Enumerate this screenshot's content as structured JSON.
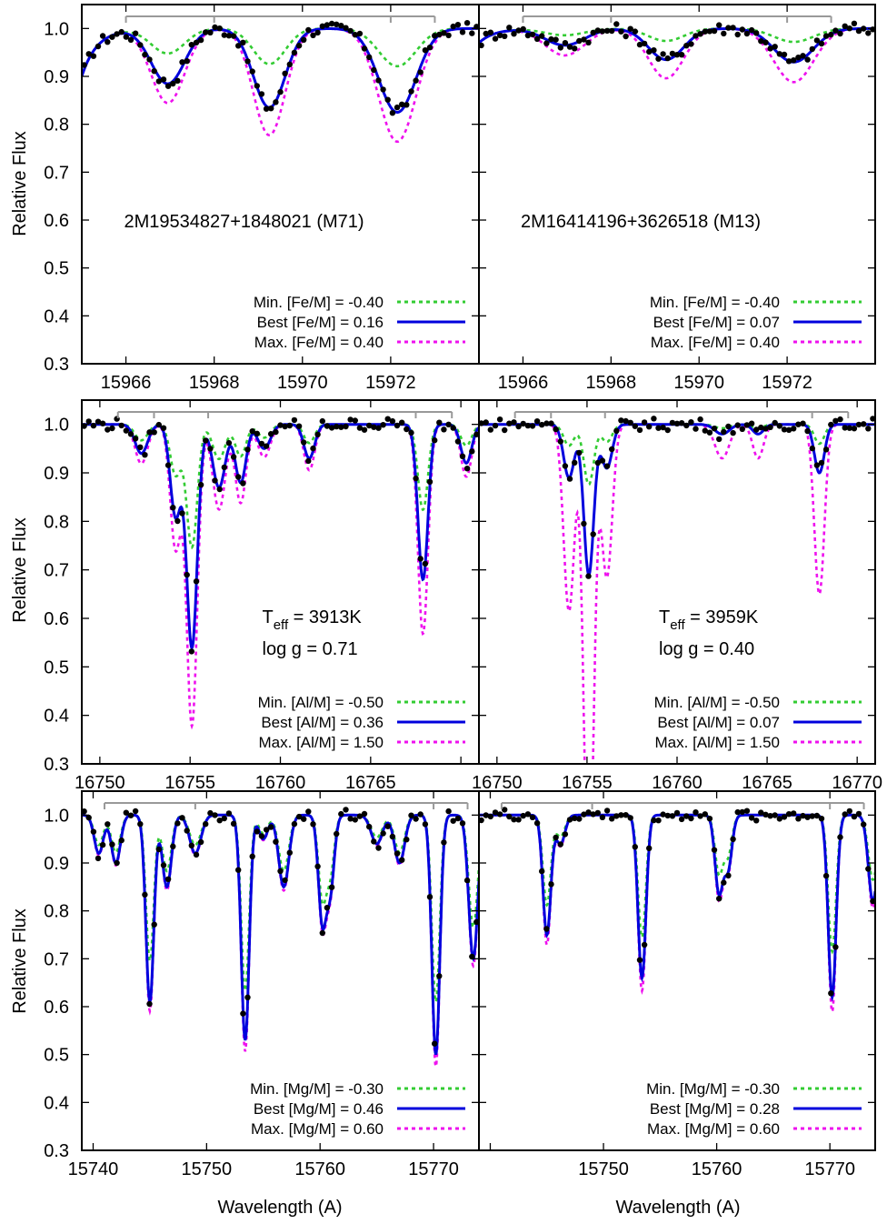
{
  "figure": {
    "y_axis_label": "Relative Flux",
    "x_axis_label": "Wavelength (A)"
  },
  "colors": {
    "min_model": "#33cc33",
    "best_model": "#0000dd",
    "max_model": "#ee11ee",
    "observed": "#000000",
    "band": "#999999"
  },
  "chart_data": [
    {
      "type": "line",
      "row": 0,
      "col": 0,
      "xlim": [
        15965.0,
        15974.0
      ],
      "ylim": [
        0.3,
        1.05
      ],
      "xticks": [
        15966,
        15968,
        15970,
        15972
      ],
      "xtick_labels": [
        "15966",
        "15968",
        "15970",
        "15972"
      ],
      "yticks": [
        0.3,
        0.4,
        0.5,
        0.6,
        0.7,
        0.8,
        0.9,
        1.0
      ],
      "ytick_labels": [
        "0.3",
        "0.4",
        "0.5",
        "0.6",
        "0.7",
        "0.8",
        "0.9",
        "1.0"
      ],
      "annotation": {
        "line1": "2M19534827+1848021 (M71)",
        "line2": ""
      },
      "band": {
        "x": [
          15966.0,
          15973.0
        ],
        "marks": [
          15968.0,
          15972.0
        ]
      },
      "lines": [
        {
          "center": 15966.95,
          "width": 0.38,
          "depth_best": 0.115
        },
        {
          "center": 15969.25,
          "width": 0.36,
          "depth_best": 0.165
        },
        {
          "center": 15972.15,
          "width": 0.42,
          "depth_best": 0.175
        }
      ],
      "scales": {
        "min": 0.45,
        "max": 1.35
      },
      "left_drop": 0.1,
      "series": [
        {
          "name": "Min. [Fe/M] = -0.40",
          "key": "min",
          "label": "Min. [Fe/M] = -0.40"
        },
        {
          "name": "Best [Fe/M] = 0.16",
          "key": "best",
          "label": "Best [Fe/M] = 0.16"
        },
        {
          "name": "Max. [Fe/M] = 0.40",
          "key": "max",
          "label": "Max. [Fe/M] = 0.40"
        }
      ]
    },
    {
      "type": "line",
      "row": 0,
      "col": 1,
      "xlim": [
        15965.0,
        15974.0
      ],
      "ylim": [
        0.3,
        1.05
      ],
      "xticks": [
        15966,
        15968,
        15970,
        15972
      ],
      "xtick_labels": [
        "15966",
        "15968",
        "15970",
        "15972"
      ],
      "yticks": [
        0.3,
        0.4,
        0.5,
        0.6,
        0.7,
        0.8,
        0.9,
        1.0
      ],
      "ytick_labels": [
        "",
        "",
        "",
        "",
        "",
        "",
        "",
        ""
      ],
      "annotation": {
        "line1": "2M16414196+3626518 (M13)",
        "line2": ""
      },
      "band": {
        "x": [
          15966.0,
          15973.0
        ],
        "marks": [
          15968.0,
          15972.0
        ]
      },
      "lines": [
        {
          "center": 15966.95,
          "width": 0.45,
          "depth_best": 0.035
        },
        {
          "center": 15969.25,
          "width": 0.4,
          "depth_best": 0.065
        },
        {
          "center": 15972.15,
          "width": 0.45,
          "depth_best": 0.07
        }
      ],
      "scales": {
        "min": 0.4,
        "max": 1.6
      },
      "left_drop": 0.03,
      "series": [
        {
          "name": "Min. [Fe/M] = -0.40",
          "key": "min",
          "label": "Min. [Fe/M] = -0.40"
        },
        {
          "name": "Best [Fe/M] = 0.07",
          "key": "best",
          "label": "Best [Fe/M] = 0.07"
        },
        {
          "name": "Max. [Fe/M] = 0.40",
          "key": "max",
          "label": "Max. [Fe/M] = 0.40"
        }
      ]
    },
    {
      "type": "line",
      "row": 1,
      "col": 0,
      "xlim": [
        16749.0,
        16771.0
      ],
      "ylim": [
        0.3,
        1.05
      ],
      "xticks": [
        16750,
        16755,
        16760,
        16765,
        16770
      ],
      "xtick_labels": [
        "16750",
        "16755",
        "16760",
        "16765",
        ""
      ],
      "yticks": [
        0.3,
        0.4,
        0.5,
        0.6,
        0.7,
        0.8,
        0.9,
        1.0
      ],
      "ytick_labels": [
        "0.3",
        "0.4",
        "0.5",
        "0.6",
        "0.7",
        "0.8",
        "0.9",
        "1.0"
      ],
      "annotation": {
        "line1": "T",
        "sub": "eff",
        "line1b": " = 3913K",
        "line2": "log g = 0.71"
      },
      "band": {
        "x": [
          16751.0,
          16769.5
        ],
        "marks": [
          16753.0,
          16756.0,
          16767.5
        ]
      },
      "lines": [
        {
          "center": 16752.3,
          "width": 0.35,
          "depth_best": 0.06
        },
        {
          "center": 16754.2,
          "width": 0.3,
          "depth_best": 0.19
        },
        {
          "center": 16755.1,
          "width": 0.3,
          "depth_best": 0.46
        },
        {
          "center": 16756.6,
          "width": 0.35,
          "depth_best": 0.13
        },
        {
          "center": 16757.8,
          "width": 0.3,
          "depth_best": 0.12
        },
        {
          "center": 16759.1,
          "width": 0.35,
          "depth_best": 0.05
        },
        {
          "center": 16761.6,
          "width": 0.3,
          "depth_best": 0.07
        },
        {
          "center": 16767.9,
          "width": 0.28,
          "depth_best": 0.32
        },
        {
          "center": 16770.3,
          "width": 0.3,
          "depth_best": 0.08
        }
      ],
      "scales": {
        "min": 0.55,
        "max": 1.35
      },
      "left_drop": 0.0,
      "series": [
        {
          "name": "Min. [Al/M] = -0.50",
          "key": "min",
          "label": "Min. [Al/M] = -0.50"
        },
        {
          "name": "Best [Al/M] = 0.36",
          "key": "best",
          "label": "Best [Al/M] = 0.36"
        },
        {
          "name": "Max. [Al/M] = 1.50",
          "key": "max",
          "label": "Max. [Al/M] = 1.50"
        }
      ]
    },
    {
      "type": "line",
      "row": 1,
      "col": 1,
      "xlim": [
        16749.0,
        16771.0
      ],
      "ylim": [
        0.3,
        1.05
      ],
      "xticks": [
        16750,
        16755,
        16760,
        16765,
        16770
      ],
      "xtick_labels": [
        "16750",
        "16755",
        "16760",
        "16765",
        "16770"
      ],
      "yticks": [
        0.3,
        0.4,
        0.5,
        0.6,
        0.7,
        0.8,
        0.9,
        1.0
      ],
      "ytick_labels": [
        "",
        "",
        "",
        "",
        "",
        "",
        "",
        ""
      ],
      "annotation": {
        "line1": "T",
        "sub": "eff",
        "line1b": " = 3959K",
        "line2": "log g = 0.40"
      },
      "band": {
        "x": [
          16751.0,
          16769.5
        ],
        "marks": [
          16753.0,
          16756.0,
          16767.5
        ]
      },
      "lines": [
        {
          "center": 16754.0,
          "width": 0.3,
          "depth_best": 0.11
        },
        {
          "center": 16755.1,
          "width": 0.28,
          "depth_best": 0.31
        },
        {
          "center": 16756.1,
          "width": 0.3,
          "depth_best": 0.09
        },
        {
          "center": 16762.5,
          "width": 0.4,
          "depth_best": 0.02
        },
        {
          "center": 16764.5,
          "width": 0.3,
          "depth_best": 0.02
        },
        {
          "center": 16767.9,
          "width": 0.28,
          "depth_best": 0.1
        }
      ],
      "scales": {
        "min": 0.4,
        "max": 3.5
      },
      "left_drop": 0.0,
      "series": [
        {
          "name": "Min. [Al/M] = -0.50",
          "key": "min",
          "label": "Min. [Al/M] = -0.50"
        },
        {
          "name": "Best [Al/M] = 0.07",
          "key": "best",
          "label": "Best [Al/M] = 0.07"
        },
        {
          "name": "Max. [Al/M] = 1.50",
          "key": "max",
          "label": "Max. [Al/M] = 1.50"
        }
      ]
    },
    {
      "type": "line",
      "row": 2,
      "col": 0,
      "xlim": [
        15739.0,
        15774.0
      ],
      "ylim": [
        0.3,
        1.05
      ],
      "xticks": [
        15740,
        15750,
        15760,
        15770
      ],
      "xtick_labels": [
        "15740",
        "15750",
        "15760",
        "15770"
      ],
      "yticks": [
        0.3,
        0.4,
        0.5,
        0.6,
        0.7,
        0.8,
        0.9,
        1.0
      ],
      "ytick_labels": [
        "0.3",
        "0.4",
        "0.5",
        "0.6",
        "0.7",
        "0.8",
        "0.9",
        "1.0"
      ],
      "annotation": {
        "line1": "",
        "line2": ""
      },
      "band": {
        "x": [
          15741.0,
          15773.0
        ],
        "marks": [
          15749.0,
          15770.0
        ]
      },
      "lines": [
        {
          "center": 15740.5,
          "width": 0.4,
          "depth_best": 0.08
        },
        {
          "center": 15742.0,
          "width": 0.4,
          "depth_best": 0.1
        },
        {
          "center": 15745.0,
          "width": 0.35,
          "depth_best": 0.39
        },
        {
          "center": 15746.5,
          "width": 0.4,
          "depth_best": 0.15
        },
        {
          "center": 15749.0,
          "width": 0.5,
          "depth_best": 0.08
        },
        {
          "center": 15753.4,
          "width": 0.35,
          "depth_best": 0.47
        },
        {
          "center": 15755.0,
          "width": 0.4,
          "depth_best": 0.05
        },
        {
          "center": 15756.8,
          "width": 0.45,
          "depth_best": 0.15
        },
        {
          "center": 15760.2,
          "width": 0.35,
          "depth_best": 0.22
        },
        {
          "center": 15760.9,
          "width": 0.35,
          "depth_best": 0.15
        },
        {
          "center": 15765.0,
          "width": 0.5,
          "depth_best": 0.06
        },
        {
          "center": 15767.0,
          "width": 0.45,
          "depth_best": 0.1
        },
        {
          "center": 15770.2,
          "width": 0.35,
          "depth_best": 0.5
        },
        {
          "center": 15773.5,
          "width": 0.4,
          "depth_best": 0.3
        }
      ],
      "scales": {
        "min": 0.78,
        "max": 1.05
      },
      "left_drop": 0.0,
      "series": [
        {
          "name": "Min. [Mg/M] = -0.30",
          "key": "min",
          "label": "Min. [Mg/M] = -0.30"
        },
        {
          "name": "Best [Mg/M] = 0.46",
          "key": "best",
          "label": "Best [Mg/M] = 0.46"
        },
        {
          "name": "Max. [Mg/M] = 0.60",
          "key": "max",
          "label": "Max. [Mg/M] = 0.60"
        }
      ]
    },
    {
      "type": "line",
      "row": 2,
      "col": 1,
      "xlim": [
        15739.0,
        15774.0
      ],
      "ylim": [
        0.3,
        1.05
      ],
      "xticks": [
        15740,
        15750,
        15760,
        15770
      ],
      "xtick_labels": [
        "",
        "15750",
        "15760",
        "15770"
      ],
      "yticks": [
        0.3,
        0.4,
        0.5,
        0.6,
        0.7,
        0.8,
        0.9,
        1.0
      ],
      "ytick_labels": [
        "",
        "",
        "",
        "",
        "",
        "",
        "",
        ""
      ],
      "annotation": {
        "line1": "",
        "line2": ""
      },
      "band": {
        "x": [
          15741.0,
          15773.0
        ],
        "marks": [
          15749.0,
          15770.0
        ]
      },
      "lines": [
        {
          "center": 15745.0,
          "width": 0.35,
          "depth_best": 0.25
        },
        {
          "center": 15746.2,
          "width": 0.4,
          "depth_best": 0.06
        },
        {
          "center": 15753.4,
          "width": 0.35,
          "depth_best": 0.34
        },
        {
          "center": 15760.2,
          "width": 0.35,
          "depth_best": 0.16
        },
        {
          "center": 15761.0,
          "width": 0.35,
          "depth_best": 0.11
        },
        {
          "center": 15770.2,
          "width": 0.35,
          "depth_best": 0.38
        },
        {
          "center": 15773.8,
          "width": 0.4,
          "depth_best": 0.18
        }
      ],
      "scales": {
        "min": 0.75,
        "max": 1.08
      },
      "left_drop": 0.0,
      "series": [
        {
          "name": "Min. [Mg/M] = -0.30",
          "key": "min",
          "label": "Min. [Mg/M] = -0.30"
        },
        {
          "name": "Best [Mg/M] = 0.28",
          "key": "best",
          "label": "Best [Mg/M] = 0.28"
        },
        {
          "name": "Max. [Mg/M] = 0.60",
          "key": "max",
          "label": "Max. [Mg/M] = 0.60"
        }
      ]
    }
  ]
}
